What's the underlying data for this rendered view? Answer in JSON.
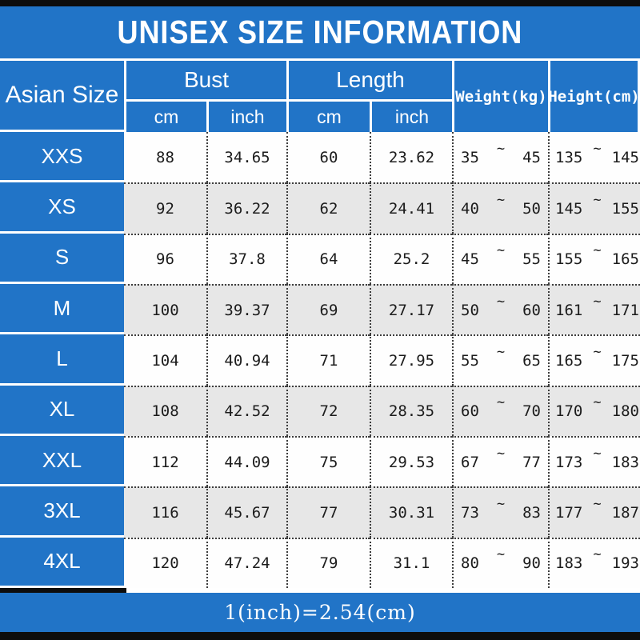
{
  "title": "UNISEX SIZE INFORMATION",
  "header": {
    "size_col": "Asian Size",
    "bust": {
      "label": "Bust",
      "units": [
        "cm",
        "inch"
      ]
    },
    "length": {
      "label": "Length",
      "units": [
        "cm",
        "inch"
      ]
    },
    "weight": "Weight(kg)",
    "height": "Height(cm)"
  },
  "sym": {
    "tilde": "~"
  },
  "rows": [
    {
      "size": "XXS",
      "bust_cm": "88",
      "bust_inch": "34.65",
      "length_cm": "60",
      "length_inch": "23.62",
      "weight_min": "35",
      "weight_max": "45",
      "height_min": "135",
      "height_max": "145"
    },
    {
      "size": "XS",
      "bust_cm": "92",
      "bust_inch": "36.22",
      "length_cm": "62",
      "length_inch": "24.41",
      "weight_min": "40",
      "weight_max": "50",
      "height_min": "145",
      "height_max": "155"
    },
    {
      "size": "S",
      "bust_cm": "96",
      "bust_inch": "37.8",
      "length_cm": "64",
      "length_inch": "25.2",
      "weight_min": "45",
      "weight_max": "55",
      "height_min": "155",
      "height_max": "165"
    },
    {
      "size": "M",
      "bust_cm": "100",
      "bust_inch": "39.37",
      "length_cm": "69",
      "length_inch": "27.17",
      "weight_min": "50",
      "weight_max": "60",
      "height_min": "161",
      "height_max": "171"
    },
    {
      "size": "L",
      "bust_cm": "104",
      "bust_inch": "40.94",
      "length_cm": "71",
      "length_inch": "27.95",
      "weight_min": "55",
      "weight_max": "65",
      "height_min": "165",
      "height_max": "175"
    },
    {
      "size": "XL",
      "bust_cm": "108",
      "bust_inch": "42.52",
      "length_cm": "72",
      "length_inch": "28.35",
      "weight_min": "60",
      "weight_max": "70",
      "height_min": "170",
      "height_max": "180"
    },
    {
      "size": "XXL",
      "bust_cm": "112",
      "bust_inch": "44.09",
      "length_cm": "75",
      "length_inch": "29.53",
      "weight_min": "67",
      "weight_max": "77",
      "height_min": "173",
      "height_max": "183"
    },
    {
      "size": "3XL",
      "bust_cm": "116",
      "bust_inch": "45.67",
      "length_cm": "77",
      "length_inch": "30.31",
      "weight_min": "73",
      "weight_max": "83",
      "height_min": "177",
      "height_max": "187"
    },
    {
      "size": "4XL",
      "bust_cm": "120",
      "bust_inch": "47.24",
      "length_cm": "79",
      "length_inch": "31.1",
      "weight_min": "80",
      "weight_max": "90",
      "height_min": "183",
      "height_max": "193"
    }
  ],
  "footer": "1(inch)=2.54(cm)",
  "colors": {
    "accent_blue": "#2174c7",
    "row_alt": "#e7e7e7",
    "bar_black": "#0d0d0d"
  }
}
